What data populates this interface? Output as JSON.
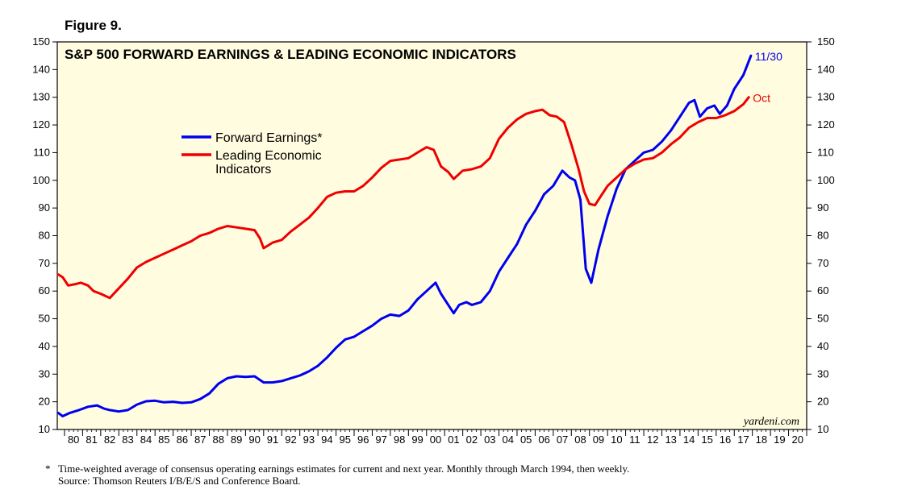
{
  "figure_label": "Figure 9.",
  "footnote": {
    "marker": "*",
    "note": "Time-weighted average of consensus operating earnings estimates for current and next year. Monthly through March 1994, then weekly.",
    "source": "Source: Thomson Reuters I/B/E/S and Conference Board."
  },
  "colors": {
    "plot_bg": "#fffce0",
    "forward_earnings": "#0000ee",
    "lei": "#ee0000"
  },
  "chart_data": {
    "type": "line",
    "title": "S&P 500 FORWARD EARNINGS & LEADING ECONOMIC INDICATORS",
    "watermark": "yardeni.com",
    "xlabel": "",
    "ylabel": "",
    "xlim": [
      1979.6,
      2021.0
    ],
    "ylim": [
      10,
      150
    ],
    "y_ticks": [
      10,
      20,
      30,
      40,
      50,
      60,
      70,
      80,
      90,
      100,
      110,
      120,
      130,
      140,
      150
    ],
    "x_tick_labels": [
      "80",
      "81",
      "82",
      "83",
      "84",
      "85",
      "86",
      "87",
      "88",
      "89",
      "90",
      "91",
      "92",
      "93",
      "94",
      "95",
      "96",
      "97",
      "98",
      "99",
      "00",
      "01",
      "02",
      "03",
      "04",
      "05",
      "06",
      "07",
      "08",
      "09",
      "10",
      "11",
      "12",
      "13",
      "14",
      "15",
      "16",
      "17",
      "18",
      "19",
      "20"
    ],
    "x_tick_start_year": 1980,
    "legend_position": "upper-left",
    "series": [
      {
        "name": "Forward Earnings*",
        "end_label": "11/30",
        "color_key": "forward_earnings",
        "points": [
          [
            1979.65,
            16
          ],
          [
            1979.9,
            14.8
          ],
          [
            1980.3,
            16
          ],
          [
            1980.8,
            17
          ],
          [
            1981.3,
            18.2
          ],
          [
            1981.8,
            18.7
          ],
          [
            1982.2,
            17.5
          ],
          [
            1982.5,
            17
          ],
          [
            1983.0,
            16.5
          ],
          [
            1983.5,
            17
          ],
          [
            1984.0,
            19
          ],
          [
            1984.5,
            20.2
          ],
          [
            1985.0,
            20.4
          ],
          [
            1985.5,
            19.8
          ],
          [
            1986.0,
            20
          ],
          [
            1986.5,
            19.6
          ],
          [
            1987.0,
            19.8
          ],
          [
            1987.5,
            21
          ],
          [
            1988.0,
            23
          ],
          [
            1988.5,
            26.5
          ],
          [
            1989.0,
            28.5
          ],
          [
            1989.5,
            29.2
          ],
          [
            1990.0,
            29
          ],
          [
            1990.5,
            29.2
          ],
          [
            1991.0,
            27
          ],
          [
            1991.5,
            27
          ],
          [
            1992.0,
            27.5
          ],
          [
            1992.5,
            28.5
          ],
          [
            1993.0,
            29.5
          ],
          [
            1993.5,
            31
          ],
          [
            1994.0,
            33
          ],
          [
            1994.5,
            36
          ],
          [
            1995.0,
            39.5
          ],
          [
            1995.5,
            42.5
          ],
          [
            1996.0,
            43.5
          ],
          [
            1996.5,
            45.5
          ],
          [
            1997.0,
            47.5
          ],
          [
            1997.5,
            50
          ],
          [
            1998.0,
            51.5
          ],
          [
            1998.5,
            51
          ],
          [
            1999.0,
            53
          ],
          [
            1999.5,
            57
          ],
          [
            2000.0,
            60
          ],
          [
            2000.5,
            63
          ],
          [
            2000.8,
            59
          ],
          [
            2001.2,
            55
          ],
          [
            2001.5,
            52
          ],
          [
            2001.8,
            55
          ],
          [
            2002.2,
            56
          ],
          [
            2002.5,
            55
          ],
          [
            2003.0,
            56
          ],
          [
            2003.5,
            60
          ],
          [
            2004.0,
            67
          ],
          [
            2004.5,
            72
          ],
          [
            2005.0,
            77
          ],
          [
            2005.5,
            84
          ],
          [
            2006.0,
            89
          ],
          [
            2006.5,
            95
          ],
          [
            2007.0,
            98
          ],
          [
            2007.5,
            103.5
          ],
          [
            2007.9,
            101
          ],
          [
            2008.2,
            100
          ],
          [
            2008.5,
            93
          ],
          [
            2008.8,
            68
          ],
          [
            2009.1,
            63
          ],
          [
            2009.5,
            75
          ],
          [
            2010.0,
            87
          ],
          [
            2010.5,
            97
          ],
          [
            2011.0,
            104
          ],
          [
            2011.5,
            107
          ],
          [
            2012.0,
            110
          ],
          [
            2012.5,
            111
          ],
          [
            2013.0,
            114
          ],
          [
            2013.5,
            118
          ],
          [
            2014.0,
            123
          ],
          [
            2014.5,
            128
          ],
          [
            2014.8,
            129
          ],
          [
            2015.1,
            123
          ],
          [
            2015.5,
            126
          ],
          [
            2015.9,
            127
          ],
          [
            2016.2,
            124
          ],
          [
            2016.6,
            127
          ],
          [
            2017.0,
            133
          ],
          [
            2017.5,
            138
          ],
          [
            2017.92,
            145
          ]
        ]
      },
      {
        "name": "Leading Economic\nIndicators",
        "end_label": "Oct",
        "color_key": "lei",
        "points": [
          [
            1979.65,
            66
          ],
          [
            1979.9,
            65
          ],
          [
            1980.2,
            62
          ],
          [
            1980.6,
            62.5
          ],
          [
            1980.9,
            63
          ],
          [
            1981.3,
            62
          ],
          [
            1981.6,
            60
          ],
          [
            1982.0,
            59
          ],
          [
            1982.5,
            57.5
          ],
          [
            1983.0,
            61
          ],
          [
            1983.5,
            64.5
          ],
          [
            1984.0,
            68.5
          ],
          [
            1984.5,
            70.5
          ],
          [
            1985.0,
            72
          ],
          [
            1985.5,
            73.5
          ],
          [
            1986.0,
            75
          ],
          [
            1986.5,
            76.5
          ],
          [
            1987.0,
            78
          ],
          [
            1987.5,
            80
          ],
          [
            1988.0,
            81
          ],
          [
            1988.5,
            82.5
          ],
          [
            1989.0,
            83.5
          ],
          [
            1989.5,
            83
          ],
          [
            1990.0,
            82.5
          ],
          [
            1990.5,
            82
          ],
          [
            1990.8,
            79
          ],
          [
            1991.0,
            75.5
          ],
          [
            1991.5,
            77.5
          ],
          [
            1992.0,
            78.5
          ],
          [
            1992.5,
            81.5
          ],
          [
            1993.0,
            84
          ],
          [
            1993.5,
            86.5
          ],
          [
            1994.0,
            90
          ],
          [
            1994.5,
            94
          ],
          [
            1995.0,
            95.5
          ],
          [
            1995.5,
            96
          ],
          [
            1996.0,
            96
          ],
          [
            1996.5,
            98
          ],
          [
            1997.0,
            101
          ],
          [
            1997.5,
            104.5
          ],
          [
            1998.0,
            107
          ],
          [
            1998.5,
            107.5
          ],
          [
            1999.0,
            108
          ],
          [
            1999.5,
            110
          ],
          [
            2000.0,
            112
          ],
          [
            2000.4,
            111
          ],
          [
            2000.8,
            105
          ],
          [
            2001.2,
            103
          ],
          [
            2001.5,
            100.5
          ],
          [
            2002.0,
            103.5
          ],
          [
            2002.5,
            104
          ],
          [
            2003.0,
            105
          ],
          [
            2003.5,
            108
          ],
          [
            2004.0,
            115
          ],
          [
            2004.5,
            119
          ],
          [
            2005.0,
            122
          ],
          [
            2005.5,
            124
          ],
          [
            2006.0,
            125
          ],
          [
            2006.4,
            125.5
          ],
          [
            2006.8,
            123.5
          ],
          [
            2007.2,
            123
          ],
          [
            2007.6,
            121
          ],
          [
            2008.0,
            113
          ],
          [
            2008.4,
            104
          ],
          [
            2008.7,
            96
          ],
          [
            2009.0,
            91.5
          ],
          [
            2009.3,
            91
          ],
          [
            2009.7,
            95
          ],
          [
            2010.0,
            98
          ],
          [
            2010.5,
            101
          ],
          [
            2011.0,
            104
          ],
          [
            2011.5,
            106
          ],
          [
            2012.0,
            107.5
          ],
          [
            2012.5,
            108
          ],
          [
            2013.0,
            110
          ],
          [
            2013.5,
            113
          ],
          [
            2014.0,
            115.5
          ],
          [
            2014.5,
            119
          ],
          [
            2015.0,
            121
          ],
          [
            2015.5,
            122.5
          ],
          [
            2016.0,
            122.5
          ],
          [
            2016.5,
            123.5
          ],
          [
            2017.0,
            125
          ],
          [
            2017.5,
            127.5
          ],
          [
            2017.8,
            130
          ]
        ]
      }
    ]
  }
}
